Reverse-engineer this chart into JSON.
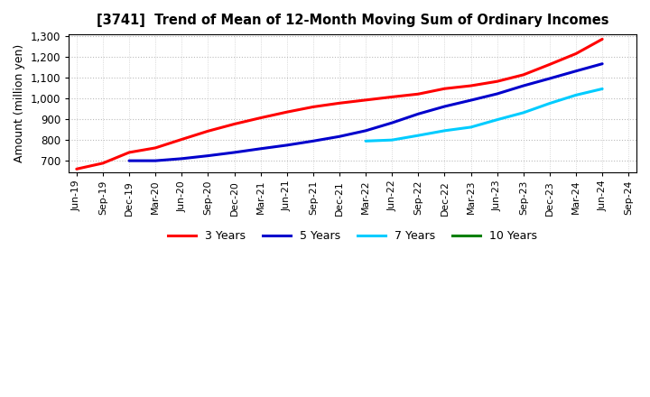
{
  "title": "[3741]  Trend of Mean of 12-Month Moving Sum of Ordinary Incomes",
  "ylabel": "Amount (million yen)",
  "ylim": [
    645,
    1310
  ],
  "yticks": [
    700,
    800,
    900,
    1000,
    1100,
    1200,
    1300
  ],
  "background_color": "#ffffff",
  "plot_background": "#ffffff",
  "grid_color_major": "#bbbbbb",
  "grid_color_minor": "#cccccc",
  "series": {
    "3 Years": {
      "color": "#ff0000",
      "points": [
        [
          "Jun-19",
          660
        ],
        [
          "Sep-19",
          688
        ],
        [
          "Dec-19",
          740
        ],
        [
          "Mar-20",
          762
        ],
        [
          "Jun-20",
          803
        ],
        [
          "Sep-20",
          843
        ],
        [
          "Dec-20",
          877
        ],
        [
          "Mar-21",
          907
        ],
        [
          "Jun-21",
          935
        ],
        [
          "Sep-21",
          960
        ],
        [
          "Dec-21",
          978
        ],
        [
          "Mar-22",
          993
        ],
        [
          "Jun-22",
          1008
        ],
        [
          "Sep-22",
          1022
        ],
        [
          "Dec-22",
          1048
        ],
        [
          "Mar-23",
          1062
        ],
        [
          "Jun-23",
          1083
        ],
        [
          "Sep-23",
          1115
        ],
        [
          "Dec-23",
          1165
        ],
        [
          "Mar-24",
          1217
        ],
        [
          "Jun-24",
          1287
        ]
      ]
    },
    "5 Years": {
      "color": "#0000cc",
      "points": [
        [
          "Dec-19",
          700
        ],
        [
          "Mar-20",
          700
        ],
        [
          "Jun-20",
          710
        ],
        [
          "Sep-20",
          724
        ],
        [
          "Dec-20",
          740
        ],
        [
          "Mar-21",
          758
        ],
        [
          "Jun-21",
          775
        ],
        [
          "Sep-21",
          795
        ],
        [
          "Dec-21",
          817
        ],
        [
          "Mar-22",
          845
        ],
        [
          "Jun-22",
          883
        ],
        [
          "Sep-22",
          926
        ],
        [
          "Dec-22",
          962
        ],
        [
          "Mar-23",
          992
        ],
        [
          "Jun-23",
          1023
        ],
        [
          "Sep-23",
          1062
        ],
        [
          "Dec-23",
          1097
        ],
        [
          "Mar-24",
          1133
        ],
        [
          "Jun-24",
          1168
        ]
      ]
    },
    "7 Years": {
      "color": "#00ccff",
      "points": [
        [
          "Mar-22",
          795
        ],
        [
          "Jun-22",
          800
        ],
        [
          "Sep-22",
          822
        ],
        [
          "Dec-22",
          845
        ],
        [
          "Mar-23",
          862
        ],
        [
          "Jun-23",
          898
        ],
        [
          "Sep-23",
          932
        ],
        [
          "Dec-23",
          977
        ],
        [
          "Mar-24",
          1017
        ],
        [
          "Jun-24",
          1047
        ]
      ]
    },
    "10 Years": {
      "color": "#008000",
      "points": []
    }
  },
  "x_tick_labels": [
    "Jun-19",
    "Sep-19",
    "Dec-19",
    "Mar-20",
    "Jun-20",
    "Sep-20",
    "Dec-20",
    "Mar-21",
    "Jun-21",
    "Sep-21",
    "Dec-21",
    "Mar-22",
    "Jun-22",
    "Sep-22",
    "Dec-22",
    "Mar-23",
    "Jun-23",
    "Sep-23",
    "Dec-23",
    "Mar-24",
    "Jun-24",
    "Sep-24"
  ],
  "legend_labels": [
    "3 Years",
    "5 Years",
    "7 Years",
    "10 Years"
  ],
  "legend_colors": [
    "#ff0000",
    "#0000cc",
    "#00ccff",
    "#008000"
  ]
}
